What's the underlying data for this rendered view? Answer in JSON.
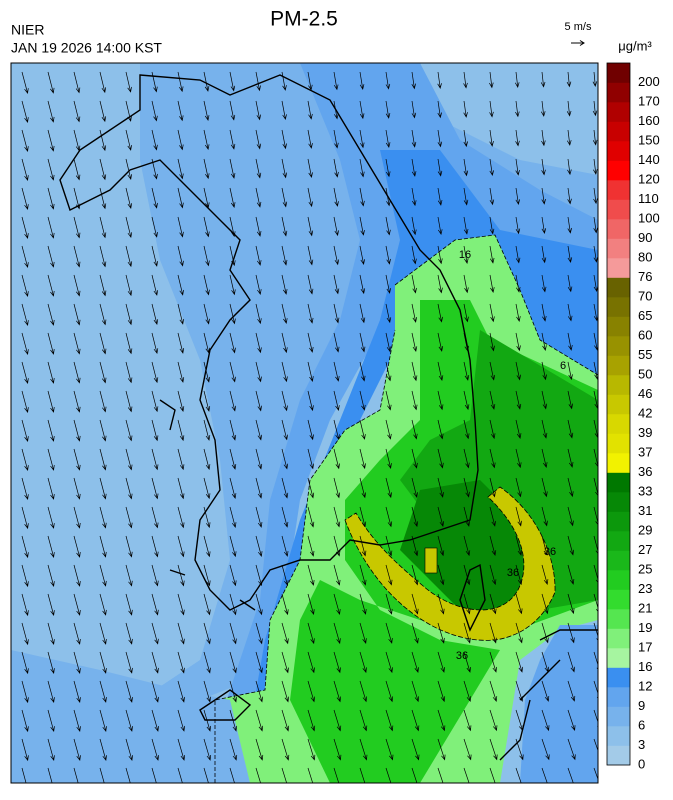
{
  "header": {
    "title": "PM-2.5",
    "agency": "NIER",
    "timestamp": "JAN 19 2026 14:00 KST",
    "wind_scale": "5 m/s",
    "unit": "μg/m³"
  },
  "colorbar": {
    "ticks": [
      0,
      3,
      6,
      9,
      12,
      16,
      17,
      19,
      21,
      23,
      25,
      27,
      29,
      31,
      33,
      36,
      37,
      39,
      42,
      46,
      50,
      55,
      60,
      65,
      70,
      76,
      80,
      90,
      100,
      110,
      120,
      140,
      150,
      160,
      170,
      200
    ],
    "colors": [
      "#a3cbe8",
      "#8dc0ea",
      "#77b2ec",
      "#62a5ee",
      "#3a8ff0",
      "#a6f5a0",
      "#80f07a",
      "#55e650",
      "#33dc2e",
      "#22cc20",
      "#1ab81a",
      "#12a812",
      "#0c980c",
      "#068806",
      "#007800",
      "#f2f200",
      "#e2e200",
      "#d8d800",
      "#c8c800",
      "#b8b800",
      "#a8a200",
      "#989200",
      "#888200",
      "#787200",
      "#686200",
      "#f59a9a",
      "#f28080",
      "#f06666",
      "#f04c4c",
      "#f03232",
      "#ff0000",
      "#e00000",
      "#c80000",
      "#b00000",
      "#900000",
      "#700000"
    ]
  },
  "contour_labels": [
    16,
    6,
    36,
    36,
    36
  ]
}
